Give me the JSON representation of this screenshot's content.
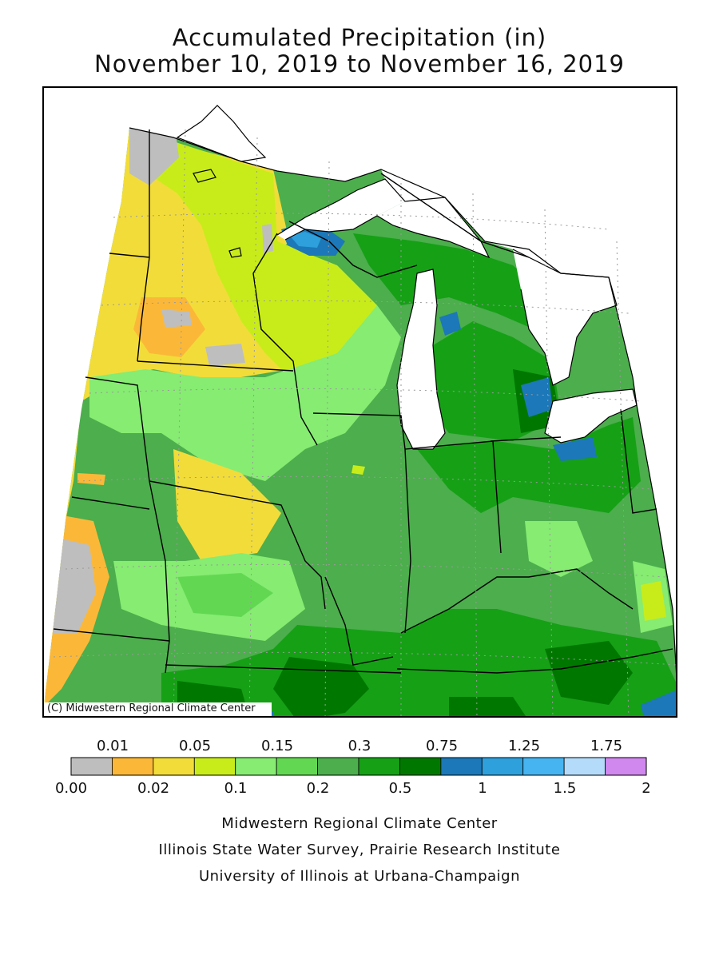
{
  "title": {
    "line1": "Accumulated Precipitation (in)",
    "line2": "November 10, 2019 to November 16, 2019"
  },
  "map": {
    "copyright": "(C) Midwestern Regional Climate Center",
    "colors": {
      "lake": "#ffffff",
      "boundary": "#000000",
      "gridline": "#9a9a9a"
    }
  },
  "legend": {
    "top_labels": [
      "0.01",
      "0.05",
      "0.15",
      "0.3",
      "0.75",
      "1.25",
      "1.75"
    ],
    "bottom_labels": [
      "0.00",
      "0.02",
      "0.1",
      "0.2",
      "0.5",
      "1",
      "1.5",
      "2"
    ],
    "colors": [
      "#bebebe",
      "#fbb838",
      "#f2dc3a",
      "#c8ec1a",
      "#86ec72",
      "#62d852",
      "#4cae4c",
      "#16a016",
      "#007800",
      "#1c78b8",
      "#2ea0dc",
      "#46b4f0",
      "#b4dcfa",
      "#d087ee"
    ]
  },
  "credits": [
    "Midwestern Regional Climate Center",
    "Illinois State Water Survey, Prairie Research Institute",
    "University of Illinois at Urbana-Champaign"
  ]
}
